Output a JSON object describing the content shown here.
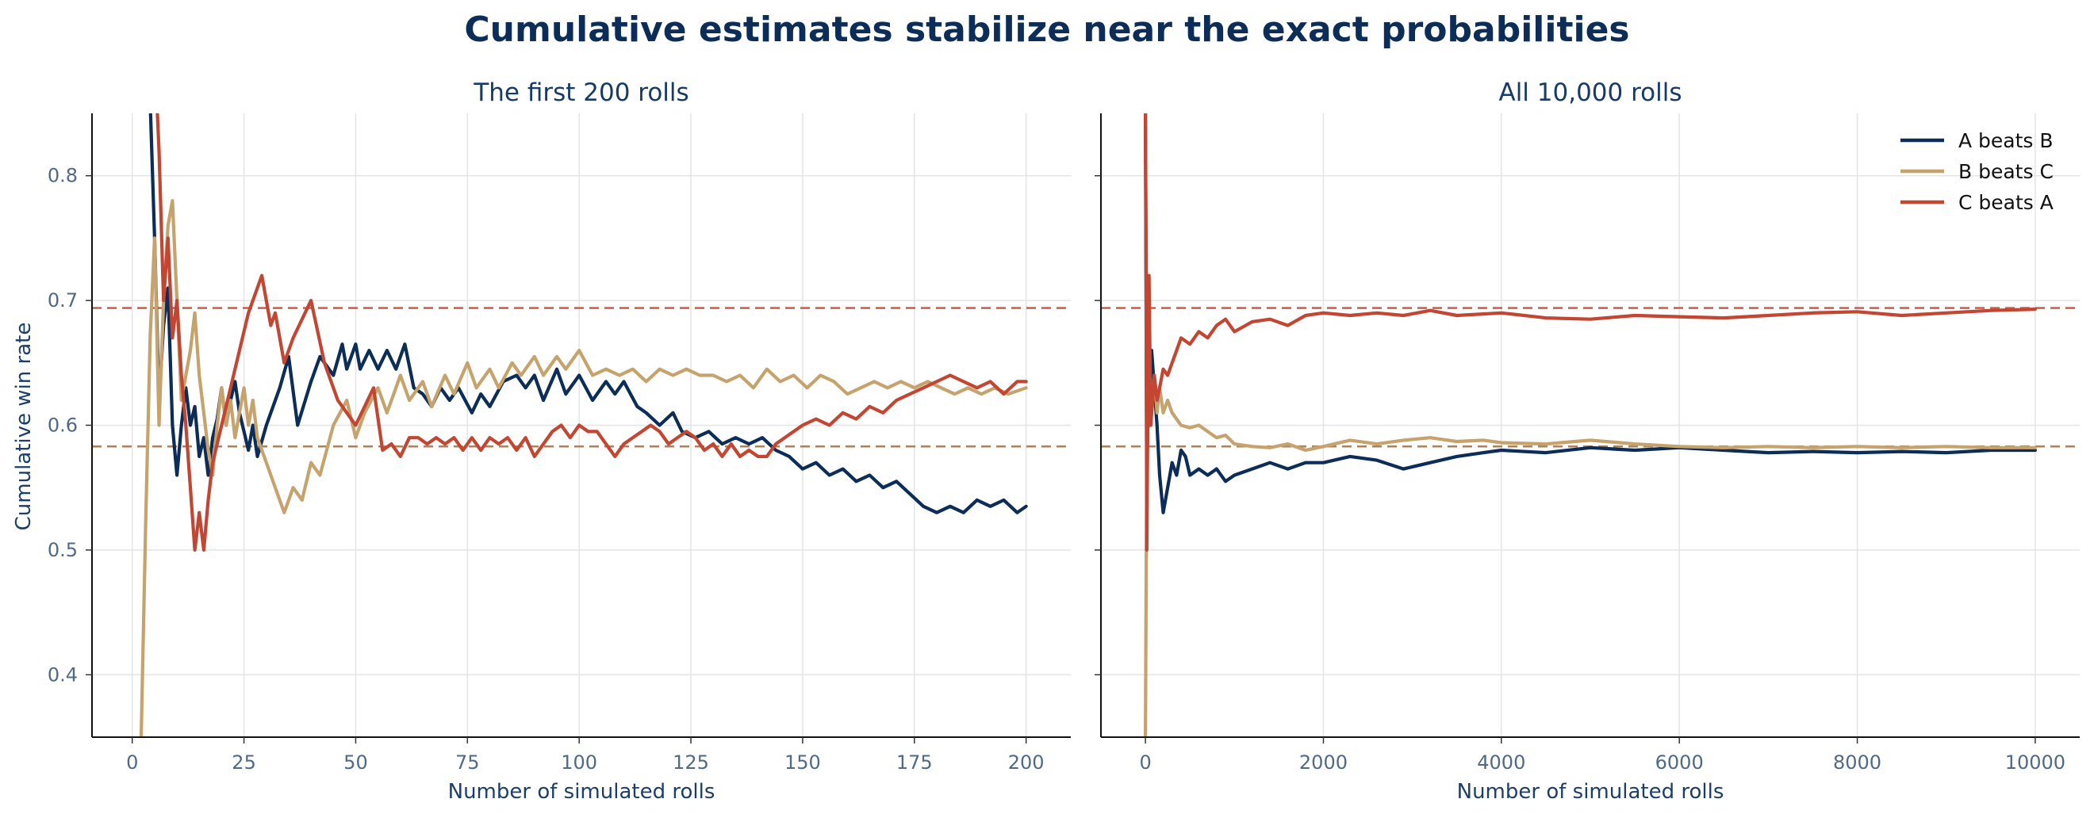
{
  "title": "Cumulative estimates stabilize near the exact probabilities",
  "colors": {
    "A beats B": "#0b2d57",
    "B beats C": "#c6a36d",
    "C beats A": "#c24632",
    "ref_red": "#d1614f",
    "ref_tan": "#a98260"
  },
  "legend": [
    "A beats B",
    "B beats C",
    "C beats A"
  ],
  "chart_data": [
    {
      "type": "line",
      "title": "The first 200 rolls",
      "xlabel": "Number of simulated rolls",
      "ylabel": "Cumulative win rate",
      "xlim": [
        -9,
        210
      ],
      "ylim": [
        0.35,
        0.85
      ],
      "xticks": [
        0,
        25,
        50,
        75,
        100,
        125,
        150,
        175,
        200
      ],
      "xtick_labels": [
        "0",
        "25",
        "50",
        "75",
        "100",
        "125",
        "150",
        "175",
        "200"
      ],
      "yticks": [
        0.4,
        0.5,
        0.6,
        0.7,
        0.8
      ],
      "ytick_labels": [
        "0.4",
        "0.5",
        "0.6",
        "0.7",
        "0.8"
      ],
      "grid": true,
      "reference_lines": [
        {
          "y": 0.694,
          "color": "ref_red"
        },
        {
          "y": 0.583,
          "color": "ref_tan"
        }
      ],
      "series": [
        {
          "name": "A beats B",
          "x": [
            3,
            4,
            5,
            6,
            7,
            8,
            9,
            10,
            11,
            12,
            13,
            14,
            15,
            16,
            17,
            18,
            19,
            20,
            21,
            22,
            23,
            24,
            25,
            26,
            27,
            28,
            30,
            33,
            35,
            37,
            40,
            42,
            45,
            47,
            48,
            50,
            51,
            53,
            55,
            57,
            59,
            61,
            63,
            65,
            67,
            69,
            71,
            73,
            76,
            78,
            80,
            83,
            86,
            88,
            90,
            92,
            95,
            97,
            100,
            103,
            106,
            108,
            110,
            113,
            115,
            118,
            121,
            123,
            126,
            129,
            132,
            135,
            138,
            141,
            144,
            147,
            150,
            153,
            156,
            159,
            162,
            165,
            168,
            171,
            174,
            177,
            180,
            183,
            186,
            189,
            192,
            195,
            198,
            200
          ],
          "y": [
            0.98,
            0.86,
            0.75,
            0.62,
            0.68,
            0.71,
            0.6,
            0.56,
            0.6,
            0.63,
            0.6,
            0.615,
            0.575,
            0.59,
            0.56,
            0.59,
            0.605,
            0.63,
            0.6,
            0.62,
            0.635,
            0.61,
            0.595,
            0.58,
            0.6,
            0.575,
            0.6,
            0.63,
            0.655,
            0.6,
            0.635,
            0.655,
            0.64,
            0.665,
            0.645,
            0.665,
            0.645,
            0.66,
            0.645,
            0.66,
            0.645,
            0.665,
            0.63,
            0.625,
            0.615,
            0.63,
            0.62,
            0.63,
            0.61,
            0.625,
            0.615,
            0.635,
            0.64,
            0.63,
            0.64,
            0.62,
            0.645,
            0.625,
            0.64,
            0.62,
            0.635,
            0.625,
            0.635,
            0.615,
            0.61,
            0.6,
            0.61,
            0.595,
            0.59,
            0.595,
            0.585,
            0.59,
            0.585,
            0.59,
            0.58,
            0.575,
            0.565,
            0.57,
            0.56,
            0.565,
            0.555,
            0.56,
            0.55,
            0.555,
            0.545,
            0.535,
            0.53,
            0.535,
            0.53,
            0.54,
            0.535,
            0.54,
            0.53,
            0.535
          ]
        },
        {
          "name": "B beats C",
          "x": [
            2,
            3,
            4,
            5,
            6,
            7,
            8,
            9,
            10,
            11,
            12,
            13,
            14,
            15,
            16,
            17,
            18,
            19,
            20,
            21,
            22,
            23,
            24,
            25,
            26,
            27,
            28,
            30,
            32,
            34,
            36,
            38,
            40,
            42,
            45,
            48,
            50,
            52,
            55,
            57,
            60,
            62,
            65,
            67,
            70,
            72,
            75,
            77,
            80,
            82,
            85,
            87,
            90,
            92,
            95,
            97,
            100,
            103,
            106,
            109,
            112,
            115,
            118,
            121,
            124,
            127,
            130,
            133,
            136,
            139,
            142,
            145,
            148,
            151,
            154,
            157,
            160,
            163,
            166,
            169,
            172,
            175,
            178,
            181,
            184,
            187,
            190,
            193,
            196,
            200
          ],
          "y": [
            0.35,
            0.52,
            0.67,
            0.75,
            0.6,
            0.7,
            0.76,
            0.78,
            0.7,
            0.62,
            0.64,
            0.66,
            0.69,
            0.64,
            0.61,
            0.58,
            0.56,
            0.6,
            0.63,
            0.6,
            0.62,
            0.59,
            0.61,
            0.63,
            0.6,
            0.62,
            0.59,
            0.57,
            0.55,
            0.53,
            0.55,
            0.54,
            0.57,
            0.56,
            0.6,
            0.62,
            0.59,
            0.61,
            0.63,
            0.61,
            0.64,
            0.62,
            0.635,
            0.615,
            0.64,
            0.625,
            0.65,
            0.63,
            0.645,
            0.63,
            0.65,
            0.64,
            0.655,
            0.64,
            0.655,
            0.645,
            0.66,
            0.64,
            0.645,
            0.64,
            0.645,
            0.635,
            0.645,
            0.64,
            0.645,
            0.64,
            0.64,
            0.635,
            0.64,
            0.63,
            0.645,
            0.635,
            0.64,
            0.63,
            0.64,
            0.635,
            0.625,
            0.63,
            0.635,
            0.63,
            0.635,
            0.63,
            0.635,
            0.63,
            0.625,
            0.63,
            0.625,
            0.63,
            0.625,
            0.63
          ]
        },
        {
          "name": "C beats A",
          "x": [
            5,
            6,
            7,
            8,
            9,
            10,
            11,
            12,
            13,
            14,
            15,
            16,
            17,
            18,
            20,
            22,
            24,
            26,
            29,
            31,
            32,
            34,
            36,
            40,
            43,
            46,
            50,
            54,
            56,
            58,
            60,
            62,
            64,
            66,
            68,
            70,
            72,
            74,
            76,
            78,
            80,
            82,
            84,
            86,
            88,
            90,
            92,
            94,
            96,
            98,
            100,
            102,
            104,
            106,
            108,
            110,
            112,
            114,
            116,
            118,
            120,
            122,
            124,
            126,
            128,
            130,
            132,
            134,
            136,
            138,
            140,
            142,
            144,
            146,
            148,
            150,
            153,
            156,
            159,
            162,
            165,
            168,
            171,
            174,
            177,
            180,
            183,
            186,
            189,
            192,
            195,
            198,
            200
          ],
          "y": [
            0.9,
            0.82,
            0.7,
            0.75,
            0.67,
            0.7,
            0.64,
            0.6,
            0.55,
            0.5,
            0.53,
            0.5,
            0.54,
            0.57,
            0.6,
            0.63,
            0.66,
            0.69,
            0.72,
            0.68,
            0.69,
            0.65,
            0.67,
            0.7,
            0.65,
            0.62,
            0.6,
            0.63,
            0.58,
            0.585,
            0.575,
            0.59,
            0.59,
            0.585,
            0.59,
            0.585,
            0.59,
            0.58,
            0.59,
            0.58,
            0.59,
            0.585,
            0.59,
            0.58,
            0.59,
            0.575,
            0.585,
            0.595,
            0.6,
            0.59,
            0.6,
            0.595,
            0.595,
            0.585,
            0.575,
            0.585,
            0.59,
            0.595,
            0.6,
            0.595,
            0.585,
            0.59,
            0.595,
            0.59,
            0.58,
            0.585,
            0.575,
            0.585,
            0.575,
            0.58,
            0.575,
            0.575,
            0.585,
            0.59,
            0.595,
            0.6,
            0.605,
            0.6,
            0.61,
            0.605,
            0.615,
            0.61,
            0.62,
            0.625,
            0.63,
            0.635,
            0.64,
            0.635,
            0.63,
            0.635,
            0.625,
            0.635,
            0.635
          ]
        }
      ]
    },
    {
      "type": "line",
      "title": "All 10,000 rolls",
      "xlabel": "Number of simulated rolls",
      "ylabel": "",
      "xlim": [
        -500,
        10500
      ],
      "ylim": [
        0.35,
        0.85
      ],
      "xticks": [
        0,
        2000,
        4000,
        6000,
        8000,
        10000
      ],
      "xtick_labels": [
        "0",
        "2000",
        "4000",
        "6000",
        "8000",
        "10000"
      ],
      "yticks": [
        0.4,
        0.5,
        0.6,
        0.7,
        0.8
      ],
      "ytick_labels": [],
      "grid": true,
      "legend_position": "top-right",
      "reference_lines": [
        {
          "y": 0.694,
          "color": "ref_red"
        },
        {
          "y": 0.583,
          "color": "ref_tan"
        }
      ],
      "series": [
        {
          "name": "A beats B",
          "x": [
            0,
            15,
            30,
            50,
            70,
            100,
            130,
            160,
            200,
            250,
            300,
            350,
            400,
            450,
            500,
            600,
            700,
            800,
            900,
            1000,
            1200,
            1400,
            1600,
            1800,
            2000,
            2300,
            2600,
            2900,
            3200,
            3500,
            3800,
            4000,
            4500,
            5000,
            5500,
            6000,
            6500,
            7000,
            7500,
            8000,
            8500,
            9000,
            9500,
            10000
          ],
          "y": [
            0.85,
            0.55,
            0.62,
            0.6,
            0.66,
            0.63,
            0.6,
            0.56,
            0.53,
            0.55,
            0.57,
            0.56,
            0.58,
            0.575,
            0.56,
            0.565,
            0.56,
            0.565,
            0.555,
            0.56,
            0.565,
            0.57,
            0.565,
            0.57,
            0.57,
            0.575,
            0.572,
            0.565,
            0.57,
            0.575,
            0.578,
            0.58,
            0.578,
            0.582,
            0.58,
            0.582,
            0.58,
            0.578,
            0.579,
            0.578,
            0.579,
            0.578,
            0.58,
            0.58
          ]
        },
        {
          "name": "B beats C",
          "x": [
            0,
            10,
            20,
            35,
            50,
            70,
            100,
            130,
            160,
            200,
            250,
            300,
            350,
            400,
            500,
            600,
            700,
            800,
            900,
            1000,
            1200,
            1400,
            1600,
            1800,
            2000,
            2300,
            2600,
            2900,
            3200,
            3500,
            3800,
            4000,
            4500,
            5000,
            5500,
            6000,
            6500,
            7000,
            7500,
            8000,
            8500,
            9000,
            9500,
            10000
          ],
          "y": [
            0.35,
            0.5,
            0.6,
            0.66,
            0.63,
            0.62,
            0.64,
            0.61,
            0.63,
            0.61,
            0.62,
            0.61,
            0.605,
            0.6,
            0.598,
            0.6,
            0.595,
            0.59,
            0.592,
            0.585,
            0.583,
            0.582,
            0.585,
            0.58,
            0.583,
            0.588,
            0.585,
            0.588,
            0.59,
            0.587,
            0.588,
            0.586,
            0.585,
            0.588,
            0.585,
            0.583,
            0.582,
            0.583,
            0.582,
            0.583,
            0.582,
            0.583,
            0.582,
            0.582
          ]
        },
        {
          "name": "C beats A",
          "x": [
            0,
            8,
            15,
            25,
            40,
            60,
            80,
            100,
            130,
            160,
            200,
            250,
            300,
            350,
            400,
            500,
            600,
            700,
            800,
            900,
            1000,
            1200,
            1400,
            1600,
            1800,
            2000,
            2300,
            2600,
            2900,
            3200,
            3500,
            4000,
            4500,
            5000,
            5500,
            6000,
            6500,
            7000,
            7500,
            8000,
            8500,
            9000,
            9500,
            10000
          ],
          "y": [
            0.85,
            0.72,
            0.5,
            0.6,
            0.72,
            0.6,
            0.62,
            0.64,
            0.62,
            0.63,
            0.645,
            0.64,
            0.65,
            0.66,
            0.67,
            0.665,
            0.675,
            0.67,
            0.68,
            0.685,
            0.675,
            0.683,
            0.685,
            0.68,
            0.688,
            0.69,
            0.688,
            0.69,
            0.688,
            0.692,
            0.688,
            0.69,
            0.686,
            0.685,
            0.688,
            0.687,
            0.686,
            0.688,
            0.69,
            0.691,
            0.688,
            0.69,
            0.692,
            0.693
          ]
        }
      ]
    }
  ]
}
